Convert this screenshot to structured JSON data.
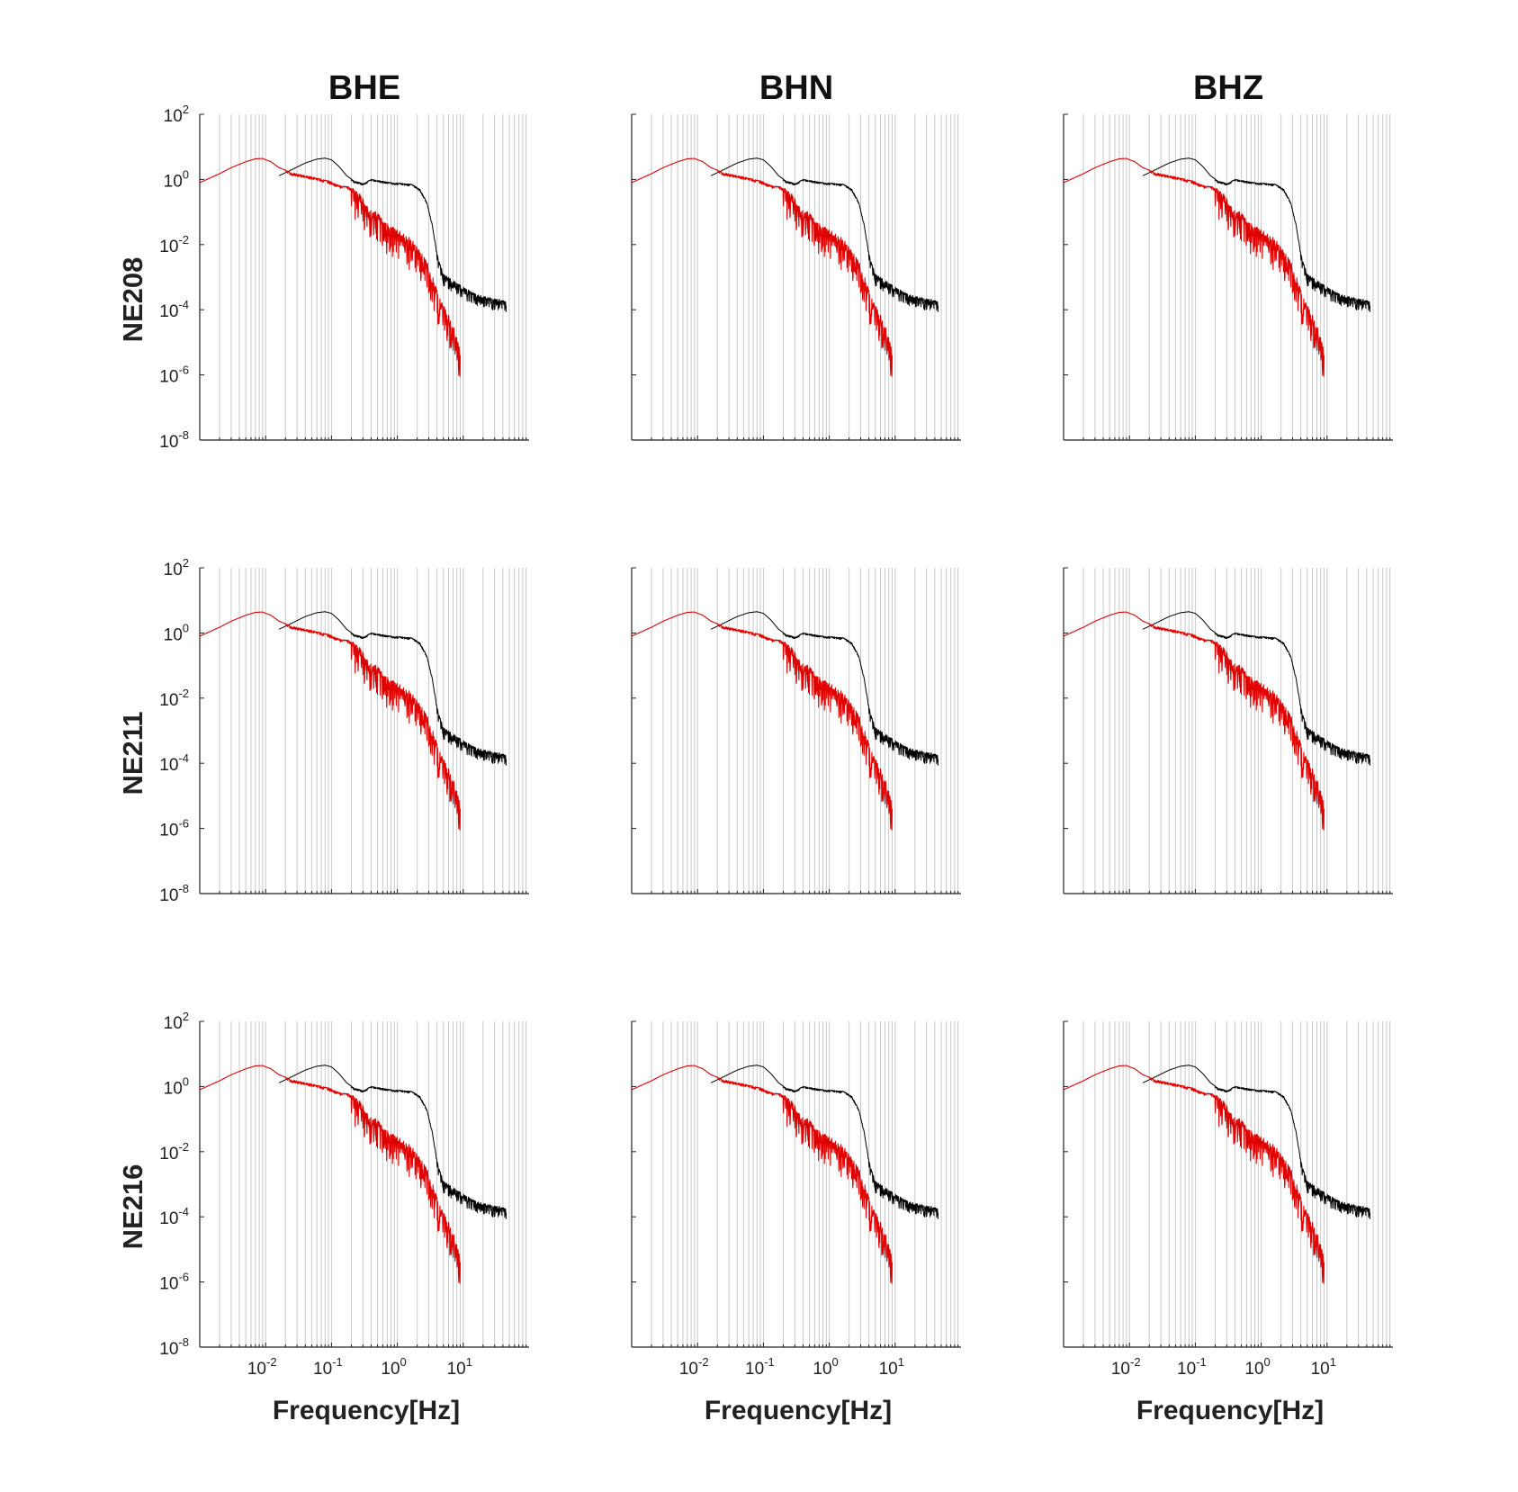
{
  "figure": {
    "columns": [
      "BHE",
      "BHN",
      "BHZ"
    ],
    "rows": [
      "NE208",
      "NE211",
      "NE216"
    ],
    "xlabel": "Frequency[Hz]"
  },
  "colors": {
    "black_series": "#000000",
    "red_series": "#e00000",
    "grid": "#c8c8c8"
  },
  "chart_data": {
    "type": "line",
    "layout": "3x3 grid of identical log-log spectra",
    "xscale": "log",
    "yscale": "log",
    "xlim": [
      0.001,
      100
    ],
    "ylim": [
      1e-08,
      100
    ],
    "grid": "vertical minor and major lines at every decade subdivision",
    "x_ticks": [
      {
        "base": "10",
        "exp": "-2",
        "value": 0.01
      },
      {
        "base": "10",
        "exp": "-1",
        "value": 0.1
      },
      {
        "base": "10",
        "exp": "0",
        "value": 1
      },
      {
        "base": "10",
        "exp": "1",
        "value": 10
      }
    ],
    "y_ticks": [
      {
        "base": "10",
        "exp": "2",
        "value": 100
      },
      {
        "base": "10",
        "exp": "0",
        "value": 1
      },
      {
        "base": "10",
        "exp": "-2",
        "value": 0.01
      },
      {
        "base": "10",
        "exp": "-4",
        "value": 0.0001
      },
      {
        "base": "10",
        "exp": "-6",
        "value": 1e-06
      },
      {
        "base": "10",
        "exp": "-8",
        "value": 1e-08
      }
    ],
    "series": [
      {
        "color": "#000000",
        "points": [
          [
            0.016,
            1.3
          ],
          [
            0.025,
            2.0
          ],
          [
            0.04,
            3.2
          ],
          [
            0.06,
            4.2
          ],
          [
            0.08,
            4.5
          ],
          [
            0.1,
            4.0
          ],
          [
            0.13,
            2.5
          ],
          [
            0.17,
            1.3
          ],
          [
            0.22,
            0.9
          ],
          [
            0.3,
            0.75
          ],
          [
            0.4,
            1.0
          ],
          [
            0.55,
            0.9
          ],
          [
            0.8,
            0.8
          ],
          [
            1.2,
            0.75
          ],
          [
            1.7,
            0.7
          ],
          [
            2.2,
            0.5
          ],
          [
            2.8,
            0.2
          ],
          [
            3.4,
            0.04
          ],
          [
            4.0,
            0.005
          ],
          [
            5.0,
            0.0012
          ],
          [
            7.0,
            0.0008
          ],
          [
            10.0,
            0.0005
          ],
          [
            15.0,
            0.0003
          ],
          [
            20.0,
            0.00025
          ],
          [
            27.0,
            0.00022
          ],
          [
            35.0,
            0.0002
          ],
          [
            45.0,
            0.00018
          ]
        ]
      },
      {
        "color": "#e00000",
        "points": [
          [
            0.001,
            0.8
          ],
          [
            0.002,
            1.5
          ],
          [
            0.003,
            2.3
          ],
          [
            0.005,
            3.5
          ],
          [
            0.007,
            4.3
          ],
          [
            0.009,
            4.4
          ],
          [
            0.012,
            3.5
          ],
          [
            0.016,
            2.3
          ],
          [
            0.025,
            1.6
          ],
          [
            0.04,
            1.3
          ],
          [
            0.06,
            1.1
          ],
          [
            0.09,
            0.9
          ],
          [
            0.13,
            0.65
          ],
          [
            0.18,
            0.6
          ],
          [
            0.25,
            0.4
          ],
          [
            0.35,
            0.15
          ],
          [
            0.5,
            0.08
          ],
          [
            0.7,
            0.04
          ],
          [
            1.0,
            0.025
          ],
          [
            1.5,
            0.015
          ],
          [
            2.0,
            0.008
          ],
          [
            2.8,
            0.003
          ],
          [
            3.5,
            0.0008
          ],
          [
            4.5,
            0.0002
          ],
          [
            6.0,
            6e-05
          ],
          [
            7.5,
            2e-05
          ],
          [
            9.0,
            6e-06
          ]
        ]
      }
    ]
  }
}
